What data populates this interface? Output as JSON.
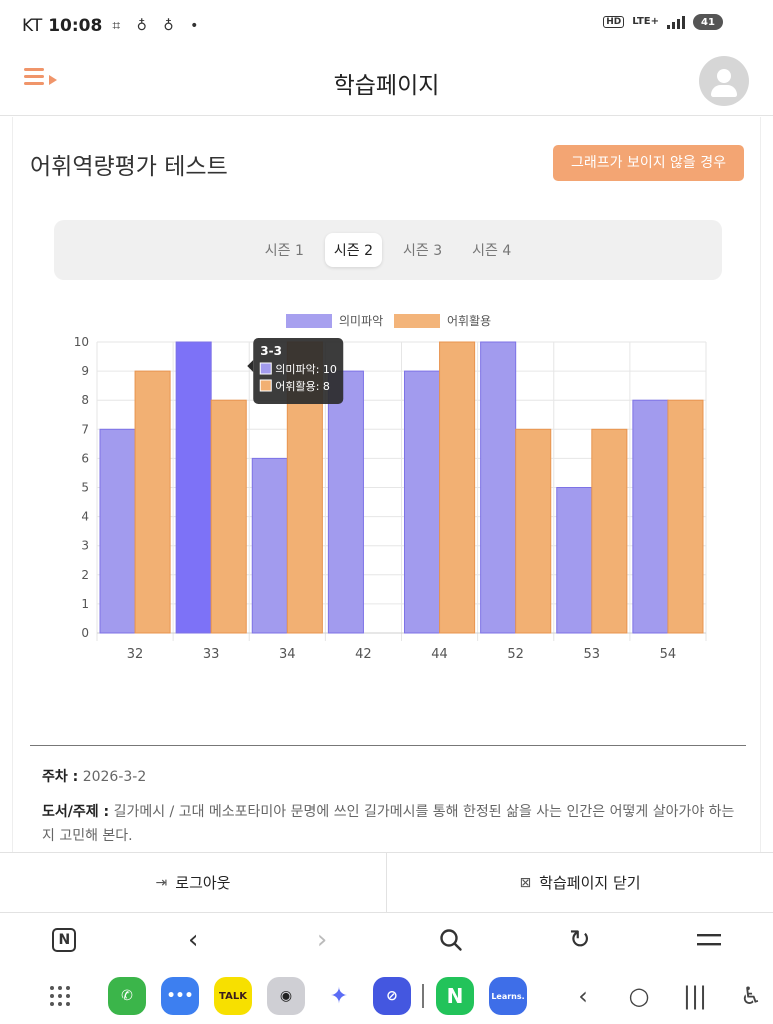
{
  "statusbar": {
    "carrier": "KT",
    "time": "10:08",
    "battery": "41",
    "lte": "LTE+",
    "hd": "HD"
  },
  "header": {
    "title": "학습페이지"
  },
  "section": {
    "title": "어휘역량평가 테스트",
    "no_graph_button": "그래프가 보이지 않을 경우"
  },
  "season_tabs": [
    {
      "label": "시즌 1",
      "active": false
    },
    {
      "label": "시즌 2",
      "active": true
    },
    {
      "label": "시즌 3",
      "active": false
    },
    {
      "label": "시즌 4",
      "active": false
    }
  ],
  "chart_data": {
    "type": "bar",
    "categories": [
      "32",
      "33",
      "34",
      "42",
      "44",
      "52",
      "53",
      "54"
    ],
    "series": [
      {
        "name": "의미파악",
        "values": [
          7,
          10,
          6,
          9,
          9,
          10,
          5,
          8
        ],
        "color": "#a29bee"
      },
      {
        "name": "어휘활용",
        "values": [
          9,
          8,
          10,
          0,
          10,
          7,
          7,
          8
        ],
        "color": "#f2b073"
      }
    ],
    "ylim": [
      0,
      10
    ],
    "yticks": [
      "0",
      "1",
      "2",
      "3",
      "4",
      "5",
      "6",
      "7",
      "8",
      "9",
      "10"
    ],
    "grid": true,
    "legend": "top",
    "highlight_category_index": 1,
    "highlight_color": "#7d72f7",
    "tooltip": {
      "title": "3-3",
      "lines": [
        "의미파악: 10",
        "어휘활용: 8"
      ]
    }
  },
  "info": {
    "week_label": "주차 :",
    "week_value": "2026-3-2",
    "book_label": "도서/주제 :",
    "book_value": "길가메시 / 고대 메소포타미아 문명에 쓰인 길가메시를 통해 한정된 삶을 사는 인간은 어떻게 살아가야 하는지 고민해 본다."
  },
  "actions": {
    "logout": "로그아웃",
    "close": "학습페이지 닫기"
  },
  "dock": {
    "learns_label": "Learns.",
    "kakao_label": "TALK",
    "naver_label": "N"
  }
}
